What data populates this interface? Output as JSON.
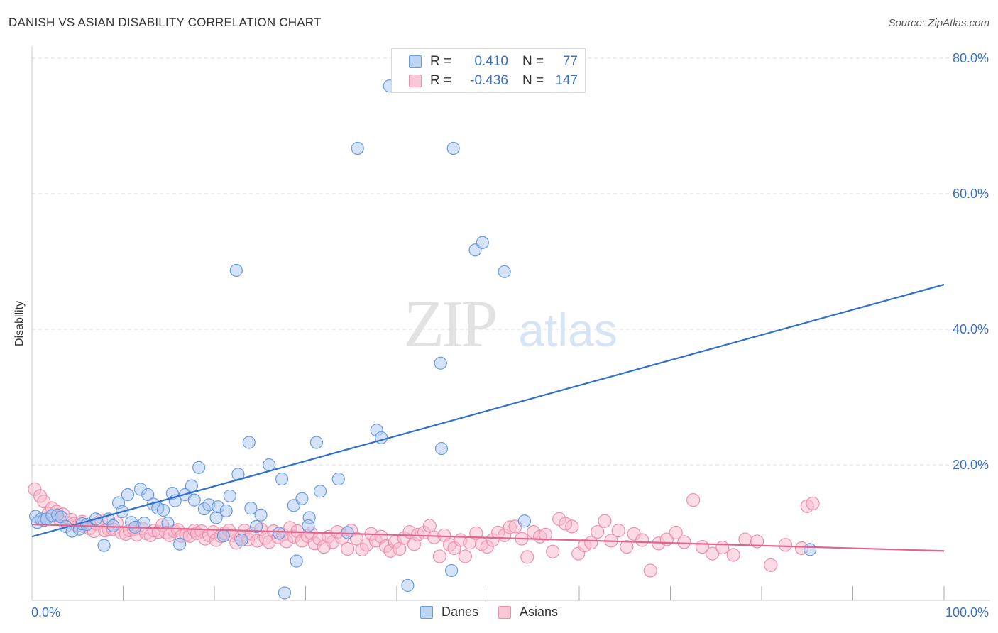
{
  "title": "DANISH VS ASIAN DISABILITY CORRELATION CHART",
  "source": "Source: ZipAtlas.com",
  "watermark": {
    "zip": "ZIP",
    "atlas": "atlas"
  },
  "legend": {
    "danes": {
      "r_label": "R =",
      "r_value": "0.410",
      "n_label": "N =",
      "n_value": "77"
    },
    "asians": {
      "r_label": "R =",
      "r_value": "-0.436",
      "n_label": "N =",
      "n_value": "147"
    }
  },
  "bottom_legend": {
    "danes": "Danes",
    "asians": "Asians"
  },
  "colors": {
    "danes_fill": "#a9c8f0",
    "danes_stroke": "#6a9be0",
    "danes_line": "#2f6fcf",
    "asians_fill": "#f7b9cc",
    "asians_stroke": "#ee8fac",
    "asians_line": "#e0648e",
    "tick_label": "#3a6fc7",
    "grid": "#dddddd"
  },
  "chart_data": {
    "type": "scatter",
    "title": "DANISH VS ASIAN DISABILITY CORRELATION CHART",
    "xlabel": "",
    "ylabel": "Disability",
    "xlim": [
      0,
      100
    ],
    "ylim": [
      0,
      80
    ],
    "x_tick_labels": [
      "0.0%",
      "100.0%"
    ],
    "y_ticks": [
      20,
      40,
      60,
      80
    ],
    "y_tick_labels": [
      "20.0%",
      "40.0%",
      "60.0%",
      "80.0%"
    ],
    "grid": true,
    "legend_placement": "top-center",
    "series": [
      {
        "name": "Danes",
        "r": 0.41,
        "n": 77,
        "trend": {
          "x": [
            0,
            100
          ],
          "y": [
            9.4,
            46.6
          ]
        },
        "points": [
          [
            0.4,
            12.4
          ],
          [
            0.6,
            11.5
          ],
          [
            1.0,
            12.0
          ],
          [
            1.3,
            11.8
          ],
          [
            1.6,
            12.0
          ],
          [
            2.2,
            12.5
          ],
          [
            2.8,
            12.6
          ],
          [
            3.2,
            12.3
          ],
          [
            3.7,
            10.9
          ],
          [
            4.4,
            10.2
          ],
          [
            5.2,
            10.5
          ],
          [
            5.5,
            11.3
          ],
          [
            6.0,
            11.2
          ],
          [
            7.0,
            12.0
          ],
          [
            7.9,
            8.1
          ],
          [
            8.4,
            12.0
          ],
          [
            8.9,
            11.0
          ],
          [
            9.5,
            14.4
          ],
          [
            9.9,
            13.1
          ],
          [
            10.5,
            15.6
          ],
          [
            10.9,
            11.5
          ],
          [
            11.3,
            10.8
          ],
          [
            11.9,
            16.4
          ],
          [
            12.3,
            11.4
          ],
          [
            12.7,
            15.6
          ],
          [
            13.3,
            14.2
          ],
          [
            13.8,
            13.6
          ],
          [
            14.4,
            13.3
          ],
          [
            14.9,
            11.4
          ],
          [
            15.4,
            15.8
          ],
          [
            15.7,
            14.7
          ],
          [
            16.2,
            8.3
          ],
          [
            16.8,
            15.6
          ],
          [
            17.5,
            16.9
          ],
          [
            17.8,
            14.8
          ],
          [
            18.3,
            19.6
          ],
          [
            18.9,
            13.5
          ],
          [
            19.4,
            14.1
          ],
          [
            20.2,
            12.2
          ],
          [
            20.4,
            13.8
          ],
          [
            21.3,
            13.2
          ],
          [
            21.7,
            15.4
          ],
          [
            22.4,
            48.7
          ],
          [
            22.6,
            18.6
          ],
          [
            23.0,
            8.9
          ],
          [
            23.8,
            23.3
          ],
          [
            24.0,
            13.6
          ],
          [
            24.6,
            10.9
          ],
          [
            25.1,
            12.6
          ],
          [
            26.0,
            20.0
          ],
          [
            27.1,
            9.9
          ],
          [
            27.4,
            17.9
          ],
          [
            27.7,
            1.1
          ],
          [
            28.7,
            14.0
          ],
          [
            29.0,
            5.8
          ],
          [
            29.6,
            15.0
          ],
          [
            30.4,
            12.2
          ],
          [
            31.2,
            23.3
          ],
          [
            31.6,
            16.1
          ],
          [
            33.6,
            17.9
          ],
          [
            34.6,
            10.0
          ],
          [
            35.7,
            66.7
          ],
          [
            37.8,
            25.1
          ],
          [
            38.3,
            24.0
          ],
          [
            39.2,
            75.9
          ],
          [
            41.2,
            2.2
          ],
          [
            44.8,
            35.0
          ],
          [
            44.9,
            22.4
          ],
          [
            46.0,
            4.4
          ],
          [
            46.2,
            66.7
          ],
          [
            48.6,
            51.7
          ],
          [
            49.4,
            52.8
          ],
          [
            51.8,
            48.5
          ],
          [
            54.0,
            11.7
          ],
          [
            85.3,
            7.5
          ],
          [
            30.3,
            11.0
          ],
          [
            21.0,
            9.5
          ]
        ]
      },
      {
        "name": "Asians",
        "r": -0.436,
        "n": 147,
        "trend": {
          "x": [
            0,
            100
          ],
          "y": [
            11.2,
            7.3
          ]
        },
        "points": [
          [
            0.3,
            16.4
          ],
          [
            0.9,
            15.4
          ],
          [
            1.3,
            14.6
          ],
          [
            1.8,
            12.8
          ],
          [
            2.2,
            13.6
          ],
          [
            2.7,
            13.1
          ],
          [
            3.0,
            12.0
          ],
          [
            3.4,
            12.7
          ],
          [
            3.8,
            11.5
          ],
          [
            4.3,
            11.9
          ],
          [
            4.6,
            11.3
          ],
          [
            5.0,
            11.0
          ],
          [
            5.5,
            11.6
          ],
          [
            5.8,
            10.9
          ],
          [
            6.3,
            10.6
          ],
          [
            6.8,
            10.2
          ],
          [
            7.1,
            11.3
          ],
          [
            7.6,
            11.8
          ],
          [
            8.0,
            10.3
          ],
          [
            8.4,
            10.5
          ],
          [
            8.9,
            10.5
          ],
          [
            9.3,
            11.4
          ],
          [
            9.8,
            10.0
          ],
          [
            10.3,
            9.8
          ],
          [
            10.7,
            10.3
          ],
          [
            11.2,
            10.5
          ],
          [
            11.5,
            9.7
          ],
          [
            12.1,
            10.6
          ],
          [
            12.5,
            9.9
          ],
          [
            13.0,
            9.6
          ],
          [
            13.4,
            10.3
          ],
          [
            13.9,
            10.1
          ],
          [
            14.3,
            11.1
          ],
          [
            14.7,
            10.0
          ],
          [
            15.1,
            9.6
          ],
          [
            15.6,
            10.2
          ],
          [
            16.0,
            10.4
          ],
          [
            16.4,
            9.5
          ],
          [
            16.9,
            9.7
          ],
          [
            17.3,
            9.5
          ],
          [
            17.8,
            10.3
          ],
          [
            18.1,
            9.9
          ],
          [
            18.6,
            10.2
          ],
          [
            19.0,
            9.1
          ],
          [
            19.4,
            9.6
          ],
          [
            19.9,
            10.1
          ],
          [
            20.2,
            8.9
          ],
          [
            20.7,
            9.5
          ],
          [
            21.1,
            9.9
          ],
          [
            21.6,
            10.3
          ],
          [
            22.0,
            9.6
          ],
          [
            22.4,
            8.5
          ],
          [
            22.9,
            9.2
          ],
          [
            23.3,
            10.3
          ],
          [
            23.7,
            9.0
          ],
          [
            24.1,
            9.8
          ],
          [
            24.7,
            8.8
          ],
          [
            25.1,
            10.5
          ],
          [
            25.6,
            9.2
          ],
          [
            26.0,
            8.6
          ],
          [
            26.5,
            10.2
          ],
          [
            27.0,
            9.3
          ],
          [
            27.5,
            9.7
          ],
          [
            27.9,
            8.7
          ],
          [
            28.3,
            10.7
          ],
          [
            28.7,
            9.4
          ],
          [
            29.1,
            10.2
          ],
          [
            29.6,
            8.8
          ],
          [
            30.2,
            9.5
          ],
          [
            30.6,
            9.9
          ],
          [
            31.0,
            8.4
          ],
          [
            31.5,
            9.1
          ],
          [
            32.0,
            7.9
          ],
          [
            32.5,
            9.4
          ],
          [
            33.0,
            8.6
          ],
          [
            33.5,
            10.1
          ],
          [
            34.0,
            9.2
          ],
          [
            34.6,
            7.6
          ],
          [
            35.0,
            10.3
          ],
          [
            35.6,
            9.1
          ],
          [
            36.2,
            7.5
          ],
          [
            36.7,
            8.2
          ],
          [
            37.2,
            9.8
          ],
          [
            37.7,
            8.8
          ],
          [
            38.3,
            9.4
          ],
          [
            38.8,
            8.0
          ],
          [
            39.3,
            7.3
          ],
          [
            39.8,
            8.6
          ],
          [
            40.3,
            7.6
          ],
          [
            40.8,
            9.2
          ],
          [
            41.4,
            10.1
          ],
          [
            41.9,
            8.3
          ],
          [
            42.3,
            9.7
          ],
          [
            43.0,
            10.0
          ],
          [
            43.6,
            11.0
          ],
          [
            44.1,
            9.3
          ],
          [
            44.7,
            6.5
          ],
          [
            45.2,
            9.6
          ],
          [
            45.8,
            8.2
          ],
          [
            46.3,
            7.7
          ],
          [
            47.0,
            8.9
          ],
          [
            47.5,
            6.5
          ],
          [
            48.0,
            8.5
          ],
          [
            48.7,
            9.9
          ],
          [
            49.3,
            8.3
          ],
          [
            49.9,
            7.9
          ],
          [
            50.5,
            8.9
          ],
          [
            51.1,
            10.0
          ],
          [
            51.8,
            9.6
          ],
          [
            52.4,
            10.8
          ],
          [
            53.0,
            10.9
          ],
          [
            53.7,
            9.1
          ],
          [
            54.3,
            6.4
          ],
          [
            55.0,
            10.1
          ],
          [
            55.7,
            9.4
          ],
          [
            56.3,
            9.7
          ],
          [
            57.1,
            7.2
          ],
          [
            57.8,
            12.0
          ],
          [
            58.5,
            11.3
          ],
          [
            59.2,
            10.9
          ],
          [
            59.9,
            6.9
          ],
          [
            60.6,
            8.1
          ],
          [
            61.3,
            8.5
          ],
          [
            62.0,
            10.1
          ],
          [
            62.8,
            11.7
          ],
          [
            63.5,
            8.8
          ],
          [
            64.3,
            10.3
          ],
          [
            65.2,
            7.9
          ],
          [
            66.0,
            9.8
          ],
          [
            66.9,
            8.9
          ],
          [
            67.8,
            4.4
          ],
          [
            68.7,
            8.4
          ],
          [
            69.6,
            9.0
          ],
          [
            70.6,
            10.0
          ],
          [
            71.5,
            8.6
          ],
          [
            72.5,
            14.8
          ],
          [
            73.5,
            7.9
          ],
          [
            74.6,
            6.9
          ],
          [
            75.7,
            7.8
          ],
          [
            76.9,
            6.7
          ],
          [
            78.2,
            9.0
          ],
          [
            79.5,
            8.7
          ],
          [
            81.0,
            5.2
          ],
          [
            82.6,
            8.2
          ],
          [
            84.4,
            7.7
          ],
          [
            85.0,
            13.9
          ],
          [
            85.6,
            14.3
          ]
        ]
      }
    ]
  }
}
